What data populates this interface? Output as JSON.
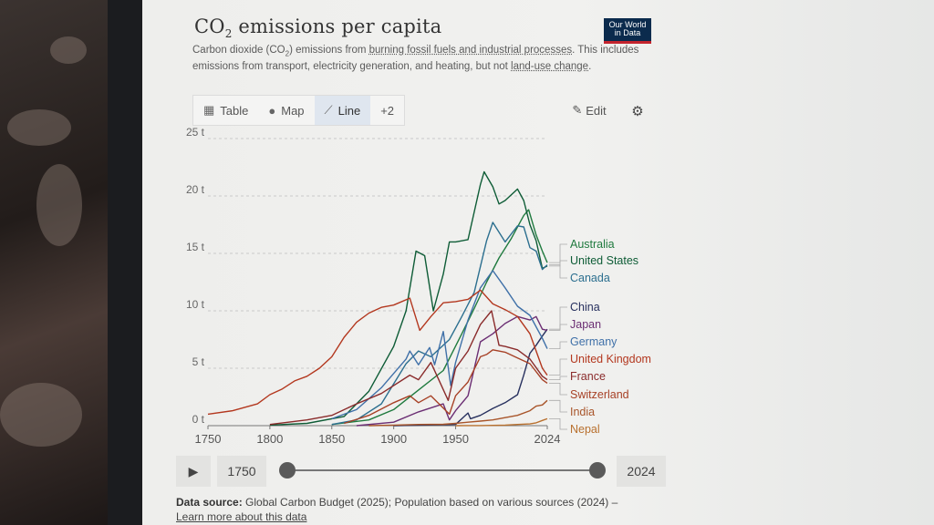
{
  "header": {
    "title_main": "CO",
    "title_sub": "2",
    "title_rest": " emissions per capita",
    "subtitle_1": "Carbon dioxide (CO",
    "subtitle_sub": "2",
    "subtitle_2": ") emissions from ",
    "subtitle_link1": "burning fossil fuels and industrial processes",
    "subtitle_3": ". This includes emissions from transport, electricity generation, and heating, but not ",
    "subtitle_link2": "land-use change",
    "subtitle_4": ".",
    "logo_line1": "Our World",
    "logo_line2": "in Data"
  },
  "tabs": [
    {
      "label": "Table",
      "icon": "table-icon"
    },
    {
      "label": "Map",
      "icon": "globe-icon"
    },
    {
      "label": "Line",
      "icon": "line-chart-icon",
      "active": true
    },
    {
      "label": "+2",
      "icon": ""
    }
  ],
  "toolbar": {
    "edit_label": "Edit",
    "settings_icon": "gear-icon"
  },
  "timeline": {
    "start_label": "1750",
    "end_label": "2024",
    "start_value": 1750,
    "end_value": 2024
  },
  "footer": {
    "source_label": "Data source:",
    "source_text": " Global Carbon Budget (2025); Population based on various sources (2024) – ",
    "learn_more": "Learn more about this data"
  },
  "chart_data": {
    "type": "line",
    "unit": "t",
    "xlim": [
      1750,
      2024
    ],
    "ylim": [
      0,
      25
    ],
    "x_ticks": [
      1750,
      1800,
      1850,
      1900,
      1950,
      2024
    ],
    "y_ticks": [
      {
        "v": 0,
        "label": "0 t"
      },
      {
        "v": 5,
        "label": "5 t"
      },
      {
        "v": 10,
        "label": "10 t"
      },
      {
        "v": 15,
        "label": "15 t"
      },
      {
        "v": 20,
        "label": "20 t"
      },
      {
        "v": 25,
        "label": "25 t"
      }
    ],
    "grid": true,
    "legend": "right",
    "series": [
      {
        "name": "Australia",
        "color": "#1f7a3e",
        "points": [
          [
            1850,
            0.1
          ],
          [
            1880,
            0.5
          ],
          [
            1900,
            1.4
          ],
          [
            1920,
            3.1
          ],
          [
            1940,
            4.8
          ],
          [
            1955,
            8.0
          ],
          [
            1965,
            10.2
          ],
          [
            1975,
            12.5
          ],
          [
            1985,
            14.6
          ],
          [
            1995,
            16.3
          ],
          [
            2005,
            18.3
          ],
          [
            2009,
            18.8
          ],
          [
            2015,
            16.6
          ],
          [
            2020,
            15.2
          ],
          [
            2024,
            14.2
          ]
        ]
      },
      {
        "name": "United States",
        "color": "#0e5c36",
        "points": [
          [
            1800,
            0.05
          ],
          [
            1830,
            0.2
          ],
          [
            1860,
            0.8
          ],
          [
            1880,
            3.0
          ],
          [
            1900,
            6.9
          ],
          [
            1910,
            10.0
          ],
          [
            1918,
            15.2
          ],
          [
            1925,
            14.8
          ],
          [
            1932,
            10.0
          ],
          [
            1940,
            13.2
          ],
          [
            1945,
            16.0
          ],
          [
            1950,
            16.0
          ],
          [
            1960,
            16.2
          ],
          [
            1970,
            21.0
          ],
          [
            1973,
            22.1
          ],
          [
            1980,
            20.8
          ],
          [
            1985,
            19.3
          ],
          [
            1990,
            19.6
          ],
          [
            2000,
            20.6
          ],
          [
            2005,
            19.6
          ],
          [
            2010,
            17.5
          ],
          [
            2015,
            16.1
          ],
          [
            2020,
            13.7
          ],
          [
            2024,
            13.9
          ]
        ]
      },
      {
        "name": "Canada",
        "color": "#2c6f8f",
        "points": [
          [
            1850,
            0.1
          ],
          [
            1870,
            0.5
          ],
          [
            1890,
            1.9
          ],
          [
            1910,
            5.4
          ],
          [
            1920,
            6.5
          ],
          [
            1930,
            6.0
          ],
          [
            1945,
            7.5
          ],
          [
            1955,
            9.5
          ],
          [
            1965,
            11.6
          ],
          [
            1975,
            16.1
          ],
          [
            1980,
            17.7
          ],
          [
            1990,
            16.0
          ],
          [
            2000,
            17.4
          ],
          [
            2005,
            17.3
          ],
          [
            2010,
            15.5
          ],
          [
            2015,
            15.2
          ],
          [
            2020,
            13.6
          ],
          [
            2024,
            14.0
          ]
        ]
      },
      {
        "name": "China",
        "color": "#27305e",
        "points": [
          [
            1900,
            0.0
          ],
          [
            1950,
            0.1
          ],
          [
            1960,
            1.1
          ],
          [
            1962,
            0.6
          ],
          [
            1970,
            0.9
          ],
          [
            1980,
            1.5
          ],
          [
            1990,
            2.0
          ],
          [
            2000,
            2.7
          ],
          [
            2005,
            4.4
          ],
          [
            2010,
            6.3
          ],
          [
            2015,
            7.0
          ],
          [
            2020,
            7.8
          ],
          [
            2024,
            8.4
          ]
        ]
      },
      {
        "name": "Japan",
        "color": "#6b2e73",
        "points": [
          [
            1870,
            0.0
          ],
          [
            1900,
            0.3
          ],
          [
            1920,
            1.2
          ],
          [
            1940,
            1.9
          ],
          [
            1945,
            0.5
          ],
          [
            1950,
            1.3
          ],
          [
            1960,
            2.6
          ],
          [
            1970,
            7.3
          ],
          [
            1980,
            8.0
          ],
          [
            1990,
            8.9
          ],
          [
            2000,
            9.5
          ],
          [
            2010,
            9.2
          ],
          [
            2015,
            9.5
          ],
          [
            2020,
            8.4
          ],
          [
            2024,
            8.3
          ]
        ]
      },
      {
        "name": "Germany",
        "color": "#3f70a8",
        "points": [
          [
            1850,
            0.6
          ],
          [
            1870,
            1.4
          ],
          [
            1890,
            3.3
          ],
          [
            1910,
            5.8
          ],
          [
            1913,
            6.5
          ],
          [
            1920,
            5.3
          ],
          [
            1929,
            6.8
          ],
          [
            1933,
            5.3
          ],
          [
            1940,
            8.2
          ],
          [
            1946,
            3.5
          ],
          [
            1950,
            5.5
          ],
          [
            1960,
            9.2
          ],
          [
            1970,
            12.0
          ],
          [
            1980,
            13.5
          ],
          [
            1990,
            12.0
          ],
          [
            2000,
            10.4
          ],
          [
            2010,
            9.6
          ],
          [
            2020,
            7.6
          ],
          [
            2024,
            6.7
          ]
        ]
      },
      {
        "name": "United Kingdom",
        "color": "#b3371e",
        "points": [
          [
            1750,
            1.0
          ],
          [
            1770,
            1.3
          ],
          [
            1790,
            1.9
          ],
          [
            1800,
            2.7
          ],
          [
            1810,
            3.2
          ],
          [
            1820,
            3.9
          ],
          [
            1830,
            4.3
          ],
          [
            1840,
            5.0
          ],
          [
            1850,
            6.0
          ],
          [
            1860,
            7.7
          ],
          [
            1870,
            9.0
          ],
          [
            1880,
            9.8
          ],
          [
            1890,
            10.3
          ],
          [
            1900,
            10.5
          ],
          [
            1913,
            11.1
          ],
          [
            1921,
            8.3
          ],
          [
            1930,
            9.5
          ],
          [
            1940,
            10.7
          ],
          [
            1950,
            10.8
          ],
          [
            1960,
            11.0
          ],
          [
            1970,
            11.8
          ],
          [
            1980,
            10.6
          ],
          [
            1990,
            10.1
          ],
          [
            2000,
            9.5
          ],
          [
            2010,
            8.0
          ],
          [
            2020,
            5.0
          ],
          [
            2024,
            4.4
          ]
        ]
      },
      {
        "name": "France",
        "color": "#8a2b2b",
        "points": [
          [
            1800,
            0.1
          ],
          [
            1830,
            0.5
          ],
          [
            1850,
            0.9
          ],
          [
            1870,
            1.9
          ],
          [
            1890,
            2.8
          ],
          [
            1913,
            4.4
          ],
          [
            1920,
            4.0
          ],
          [
            1930,
            5.5
          ],
          [
            1944,
            2.2
          ],
          [
            1950,
            5.0
          ],
          [
            1960,
            6.5
          ],
          [
            1970,
            8.8
          ],
          [
            1979,
            10.0
          ],
          [
            1985,
            7.0
          ],
          [
            1990,
            6.9
          ],
          [
            2000,
            6.6
          ],
          [
            2010,
            5.8
          ],
          [
            2020,
            4.3
          ],
          [
            2024,
            4.0
          ]
        ]
      },
      {
        "name": "Switzerland",
        "color": "#a74126",
        "points": [
          [
            1860,
            0.2
          ],
          [
            1880,
            0.9
          ],
          [
            1900,
            2.0
          ],
          [
            1913,
            2.6
          ],
          [
            1920,
            2.0
          ],
          [
            1930,
            2.6
          ],
          [
            1945,
            1.0
          ],
          [
            1950,
            2.6
          ],
          [
            1960,
            3.8
          ],
          [
            1970,
            6.0
          ],
          [
            1975,
            6.2
          ],
          [
            1980,
            6.6
          ],
          [
            1990,
            6.4
          ],
          [
            2000,
            5.9
          ],
          [
            2010,
            5.4
          ],
          [
            2020,
            4.0
          ],
          [
            2024,
            3.7
          ]
        ]
      },
      {
        "name": "India",
        "color": "#a8552a",
        "points": [
          [
            1880,
            0.0
          ],
          [
            1900,
            0.05
          ],
          [
            1920,
            0.1
          ],
          [
            1940,
            0.12
          ],
          [
            1950,
            0.2
          ],
          [
            1960,
            0.3
          ],
          [
            1970,
            0.4
          ],
          [
            1980,
            0.5
          ],
          [
            1990,
            0.7
          ],
          [
            2000,
            0.9
          ],
          [
            2010,
            1.3
          ],
          [
            2015,
            1.7
          ],
          [
            2020,
            1.8
          ],
          [
            2024,
            2.2
          ]
        ]
      },
      {
        "name": "Nepal",
        "color": "#b8702e",
        "points": [
          [
            1950,
            0.0
          ],
          [
            1970,
            0.01
          ],
          [
            1990,
            0.05
          ],
          [
            2000,
            0.1
          ],
          [
            2010,
            0.15
          ],
          [
            2015,
            0.25
          ],
          [
            2020,
            0.45
          ],
          [
            2024,
            0.6
          ]
        ]
      }
    ]
  }
}
